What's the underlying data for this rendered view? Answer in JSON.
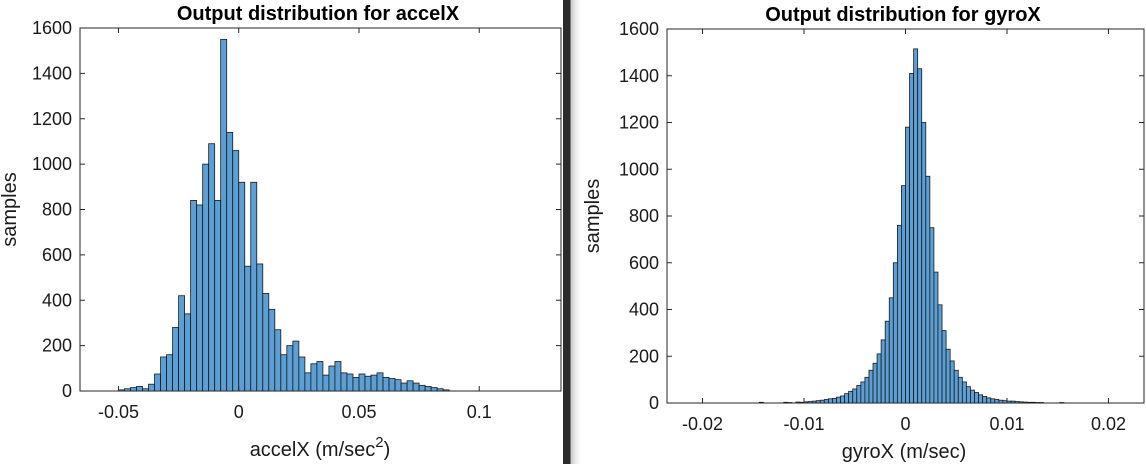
{
  "chart_data": [
    {
      "type": "bar",
      "title": "Output distribution for accelX",
      "xlabel": "accelX (m/sec",
      "xlabel_superscript": "2",
      "xlabel_suffix": ")",
      "ylabel": "samples",
      "xlim": [
        -0.066,
        0.134
      ],
      "ylim": [
        0,
        1600
      ],
      "xticks": [
        -0.05,
        0,
        0.05,
        0.1
      ],
      "xtick_labels": [
        "-0.05",
        "0",
        "0.05",
        "0.1"
      ],
      "yticks": [
        0,
        200,
        400,
        600,
        800,
        1000,
        1200,
        1400,
        1600
      ],
      "ytick_labels": [
        "0",
        "200",
        "400",
        "600",
        "800",
        "1000",
        "1200",
        "1400",
        "1600"
      ],
      "bin_width": 0.0025,
      "bin_start": -0.05,
      "values": [
        5,
        10,
        15,
        20,
        10,
        30,
        75,
        150,
        160,
        280,
        420,
        340,
        840,
        820,
        1000,
        1090,
        840,
        1550,
        1140,
        1060,
        920,
        550,
        920,
        560,
        430,
        360,
        270,
        160,
        200,
        220,
        150,
        80,
        120,
        130,
        70,
        110,
        130,
        80,
        75,
        60,
        75,
        65,
        70,
        80,
        60,
        55,
        50,
        35,
        45,
        35,
        25,
        20,
        15,
        10,
        5
      ],
      "bar_color": "#5b9fd4",
      "grid": false
    },
    {
      "type": "bar",
      "title": "Output distribution for gyroX",
      "xlabel": "gyroX (m/sec)",
      "ylabel": "samples",
      "xlim": [
        -0.0235,
        0.0235
      ],
      "ylim": [
        0,
        1600
      ],
      "xticks": [
        -0.02,
        -0.01,
        0,
        0.01,
        0.02
      ],
      "xtick_labels": [
        "-0.02",
        "-0.01",
        "0",
        "0.01",
        "0.02"
      ],
      "yticks": [
        0,
        200,
        400,
        600,
        800,
        1000,
        1200,
        1400,
        1600
      ],
      "ytick_labels": [
        "0",
        "200",
        "400",
        "600",
        "800",
        "1000",
        "1200",
        "1400",
        "1600"
      ],
      "bin_width": 0.0004,
      "bin_start": -0.0144,
      "values": [
        3,
        0,
        0,
        0,
        0,
        0,
        3,
        2,
        0,
        4,
        3,
        5,
        6,
        8,
        10,
        12,
        15,
        18,
        20,
        25,
        30,
        40,
        50,
        60,
        75,
        90,
        110,
        140,
        170,
        210,
        270,
        350,
        450,
        600,
        760,
        930,
        1180,
        1410,
        1515,
        1430,
        1200,
        970,
        750,
        560,
        420,
        310,
        230,
        180,
        140,
        110,
        90,
        70,
        55,
        45,
        35,
        28,
        22,
        18,
        15,
        12,
        10,
        8,
        8,
        6,
        5,
        4,
        3,
        3,
        2,
        2,
        0,
        0,
        0,
        0,
        2
      ],
      "bar_color": "#5b9fd4",
      "grid": false
    }
  ]
}
